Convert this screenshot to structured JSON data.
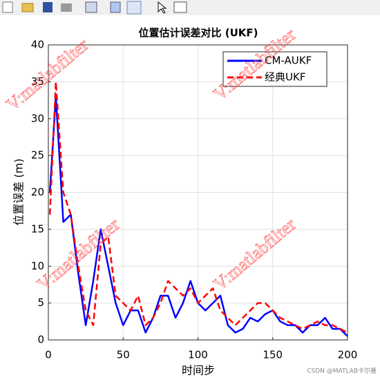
{
  "chart_data": {
    "type": "line",
    "title": "位置估计误差对比 (UKF)",
    "xlabel": "时间步",
    "ylabel": "位置误差 (m)",
    "x": [
      1,
      5,
      10,
      15,
      20,
      25,
      30,
      35,
      40,
      45,
      50,
      55,
      60,
      65,
      70,
      75,
      80,
      85,
      90,
      95,
      100,
      105,
      110,
      115,
      120,
      125,
      130,
      135,
      140,
      145,
      150,
      155,
      160,
      165,
      170,
      175,
      180,
      185,
      190,
      195,
      200
    ],
    "series": [
      {
        "name": "CM-AUKF",
        "color": "#0000ff",
        "dash": "solid",
        "values": [
          20,
          33,
          16,
          17,
          9,
          2,
          8,
          15,
          10,
          5,
          2,
          4,
          4,
          1,
          3,
          6,
          6,
          3,
          5,
          8,
          5,
          4,
          5,
          6,
          2,
          1,
          1.5,
          3,
          2.5,
          3.5,
          4,
          2.5,
          2,
          2,
          1,
          2,
          2,
          3,
          1.5,
          1.5,
          0.5
        ]
      },
      {
        "name": "经典UKF",
        "color": "#ff0000",
        "dash": "dashed",
        "values": [
          17,
          35,
          20,
          17,
          10,
          4,
          2,
          13,
          14,
          6,
          5,
          4,
          6,
          2,
          3,
          5,
          8,
          7,
          6,
          7,
          5,
          6,
          7,
          4,
          3,
          2,
          3,
          4,
          5,
          5,
          4,
          3,
          2.5,
          2,
          1.5,
          2,
          2.5,
          2,
          2,
          1.5,
          1
        ]
      }
    ],
    "xlim": [
      0,
      200
    ],
    "xticks": [
      0,
      50,
      100,
      150,
      200
    ],
    "ylim": [
      0,
      40
    ],
    "yticks": [
      0,
      5,
      10,
      15,
      20,
      25,
      30,
      35,
      40
    ],
    "grid": true,
    "legend": "top-right",
    "watermark": "V:matlabfilter",
    "credit": "CSDN @MATLAB卡尔曼"
  }
}
